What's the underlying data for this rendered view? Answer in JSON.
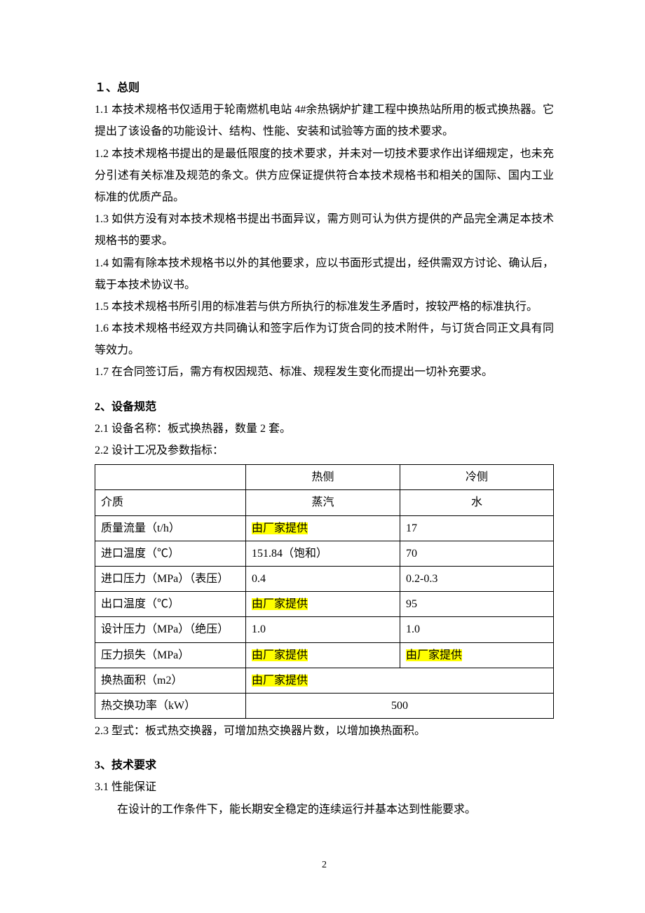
{
  "section1": {
    "heading": "１、总则",
    "p1": "1.1 本技术规格书仅适用于轮南燃机电站 4#余热锅炉扩建工程中换热站所用的板式换热器。它提出了该设备的功能设计、结构、性能、安装和试验等方面的技术要求。",
    "p2": "1.2 本技术规格书提出的是最低限度的技术要求，并未对一切技术要求作出详细规定，也未充分引述有关标准及规范的条文。供方应保证提供符合本技术规格书和相关的国际、国内工业标准的优质产品。",
    "p3": "1.3 如供方没有对本技术规格书提出书面异议，需方则可认为供方提供的产品完全满足本技术规格书的要求。",
    "p4": "1.4 如需有除本技术规格书以外的其他要求，应以书面形式提出，经供需双方讨论、确认后，载于本技术协议书。",
    "p5": "1.5 本技术规格书所引用的标准若与供方所执行的标准发生矛盾时，按较严格的标准执行。",
    "p6": "1.6 本技术规格书经双方共同确认和签字后作为订货合同的技术附件，与订货合同正文具有同等效力。",
    "p7": "1.7 在合同签订后，需方有权因规范、标准、规程发生变化而提出一切补充要求。"
  },
  "section2": {
    "heading": "2、设备规范",
    "p21": "2.1 设备名称：板式换热器，数量 2 套。",
    "p22": "2.2 设计工况及参数指标：",
    "table": {
      "head_hot": "热侧",
      "head_cold": "冷侧",
      "rows": {
        "r1": {
          "label": "介质",
          "hot": "蒸汽",
          "cold": "水",
          "hot_hl": false,
          "cold_hl": false,
          "hot_center": true,
          "cold_center": true
        },
        "r2": {
          "label": "质量流量（t/h）",
          "hot": "由厂家提供",
          "cold": "17",
          "hot_hl": true,
          "cold_hl": false
        },
        "r3": {
          "label": "进口温度（℃）",
          "hot": "151.84（饱和）",
          "cold": "70",
          "hot_hl": false,
          "cold_hl": false
        },
        "r4": {
          "label": "进口压力（MPa）（表压）",
          "hot": "0.4",
          "cold": "0.2-0.3",
          "hot_hl": false,
          "cold_hl": false
        },
        "r5": {
          "label": "出口温度（℃）",
          "hot": "由厂家提供",
          "cold": "95",
          "hot_hl": true,
          "cold_hl": false
        },
        "r6": {
          "label": "设计压力（MPa）（绝压）",
          "hot": "1.0",
          "cold": "1.0",
          "hot_hl": false,
          "cold_hl": false
        },
        "r7": {
          "label": "压力损失（MPa）",
          "hot": "由厂家提供",
          "cold": "由厂家提供",
          "hot_hl": true,
          "cold_hl": true
        },
        "r8": {
          "label": "换热面积（m2）",
          "merged": "由厂家提供",
          "merged_hl": true,
          "merged_center": false
        },
        "r9": {
          "label": "热交换功率（kW）",
          "merged": "500",
          "merged_hl": false,
          "merged_center": true
        }
      }
    },
    "p23": "2.3 型式：板式热交换器，可增加热交换器片数，以增加换热面积。"
  },
  "section3": {
    "heading": "3、技术要求",
    "p31": "3.1 性能保证",
    "p31_body": "在设计的工作条件下，能长期安全稳定的连续运行并基本达到性能要求。"
  },
  "page_number": "2",
  "colors": {
    "highlight": "#ffff00",
    "text": "#000000",
    "background": "#ffffff",
    "border": "#000000"
  }
}
